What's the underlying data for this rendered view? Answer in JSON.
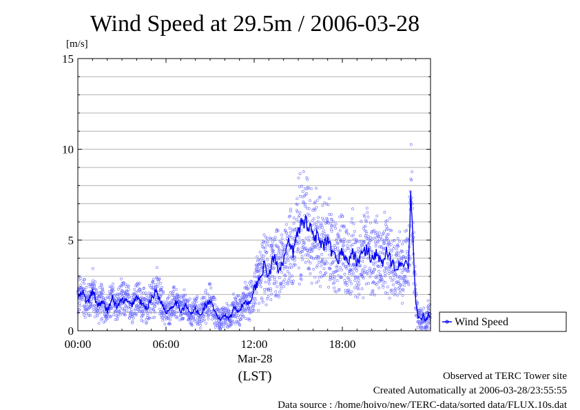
{
  "chart_data": {
    "type": "line",
    "title": "Wind Speed at 29.5m / 2006-03-28",
    "ylabel": "[m/s]",
    "xlabel": "(LST)",
    "ylim": [
      0,
      15
    ],
    "xlim": [
      0,
      1440
    ],
    "y_ticks": [
      {
        "value": 0,
        "label": "0"
      },
      {
        "value": 5,
        "label": "5"
      },
      {
        "value": 10,
        "label": "10"
      },
      {
        "value": 15,
        "label": "15"
      }
    ],
    "x_ticks": [
      {
        "value": 0,
        "label": "00:00"
      },
      {
        "value": 360,
        "label": "06:00"
      },
      {
        "value": 720,
        "label": "12:00"
      },
      {
        "value": 1080,
        "label": "18:00"
      }
    ],
    "date_label": "Mar-28",
    "grid": true,
    "legend_placement": "right",
    "series": [
      {
        "name": "Wind Speed",
        "color": "#0000ee",
        "scatter_color": "#6666ff",
        "x_unit": "minutes since 00:00 LST",
        "x": [
          0,
          20,
          40,
          60,
          80,
          100,
          120,
          140,
          160,
          180,
          200,
          220,
          240,
          260,
          280,
          300,
          320,
          340,
          360,
          380,
          400,
          420,
          440,
          460,
          480,
          500,
          520,
          540,
          560,
          580,
          600,
          620,
          640,
          660,
          680,
          700,
          720,
          740,
          760,
          780,
          800,
          820,
          840,
          860,
          880,
          900,
          920,
          940,
          960,
          980,
          1000,
          1020,
          1040,
          1060,
          1080,
          1100,
          1120,
          1140,
          1160,
          1180,
          1200,
          1220,
          1240,
          1260,
          1280,
          1300,
          1320,
          1330,
          1340,
          1350,
          1360,
          1370,
          1380,
          1390,
          1400,
          1410,
          1420,
          1430,
          1440
        ],
        "y": [
          1.8,
          2.1,
          1.5,
          2.2,
          1.4,
          1.6,
          1.1,
          1.8,
          1.3,
          1.7,
          1.6,
          1.4,
          1.9,
          1.5,
          1.2,
          1.8,
          2.2,
          1.6,
          1.0,
          1.3,
          1.6,
          1.1,
          1.4,
          0.9,
          1.2,
          0.8,
          1.4,
          1.6,
          1.0,
          0.6,
          0.9,
          0.7,
          1.3,
          1.1,
          1.6,
          1.5,
          2.3,
          2.8,
          3.6,
          3.0,
          4.1,
          3.4,
          3.9,
          4.8,
          4.3,
          5.6,
          6.1,
          5.9,
          5.4,
          5.1,
          4.6,
          4.9,
          4.2,
          3.9,
          4.4,
          3.7,
          4.3,
          3.8,
          4.2,
          4.5,
          3.9,
          4.4,
          3.6,
          4.3,
          3.8,
          3.5,
          3.9,
          3.2,
          4.0,
          3.4,
          7.8,
          4.1,
          1.6,
          0.7,
          0.6,
          0.8,
          0.5,
          0.9,
          0.7
        ]
      }
    ]
  },
  "footer": {
    "observed": "Observed at TERC Tower site",
    "created": "Created Automatically at 2006-03-28/23:55:55",
    "source": "Data source : /home/hoivo/new/TERC-data/sorted  data/FLUX.10s.dat"
  }
}
